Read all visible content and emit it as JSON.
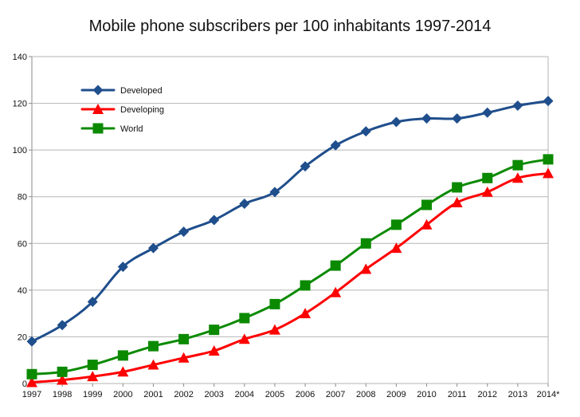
{
  "chart_data": {
    "type": "line",
    "title": "Mobile phone subscribers per 100 inhabitants 1997-2014",
    "xlabel": "",
    "ylabel": "",
    "categories": [
      "1997",
      "1998",
      "1999",
      "2000",
      "2001",
      "2002",
      "2003",
      "2004",
      "2005",
      "2006",
      "2007",
      "2008",
      "2009",
      "2010",
      "2011",
      "2012",
      "2013",
      "2014*"
    ],
    "yticks": [
      0,
      20,
      40,
      60,
      80,
      100,
      120,
      140
    ],
    "ylim": [
      0,
      140
    ],
    "grid": true,
    "legend_position": "top-left",
    "series": [
      {
        "name": "Developed",
        "color": "#1f4e8c",
        "marker": "diamond",
        "values": [
          18,
          25,
          35,
          50,
          58,
          65,
          70,
          77,
          82,
          93,
          102,
          108,
          112,
          113.5,
          113.5,
          116,
          119,
          121
        ]
      },
      {
        "name": "Developing",
        "color": "#ff0000",
        "marker": "triangle",
        "values": [
          0.5,
          1.5,
          3,
          5,
          8,
          11,
          14,
          19,
          23,
          30,
          39,
          49,
          58,
          68,
          77.5,
          82,
          88,
          90
        ]
      },
      {
        "name": "World",
        "color": "#0b8a00",
        "marker": "square",
        "values": [
          4,
          5,
          8,
          12,
          16,
          19,
          23,
          28,
          34,
          42,
          50.5,
          60,
          68,
          76.5,
          84,
          88,
          93.5,
          96
        ]
      }
    ]
  }
}
